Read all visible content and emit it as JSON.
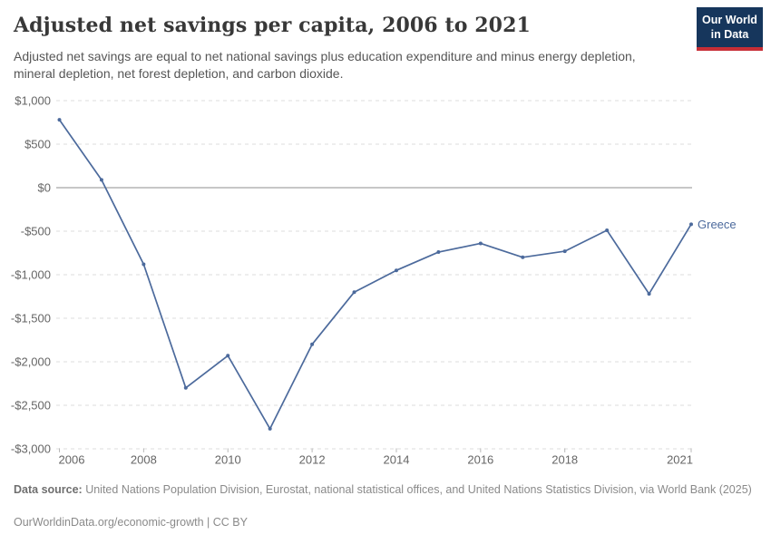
{
  "header": {
    "title": "Adjusted net savings per capita, 2006 to 2021",
    "subtitle": "Adjusted net savings are equal to net national savings plus education expenditure and minus energy depletion, mineral depletion, net forest depletion, and carbon dioxide.",
    "logo": {
      "line1": "Our World",
      "line2": "in Data"
    }
  },
  "chart_data": {
    "type": "line",
    "title": "Adjusted net savings per capita, 2006 to 2021",
    "x": [
      2006,
      2007,
      2008,
      2009,
      2010,
      2011,
      2012,
      2013,
      2014,
      2015,
      2016,
      2017,
      2018,
      2019,
      2020,
      2021
    ],
    "series": [
      {
        "name": "Greece",
        "color": "#4c6a9c",
        "values": [
          780,
          90,
          -880,
          -2300,
          -1930,
          -2770,
          -1800,
          -1200,
          -950,
          -740,
          -640,
          -800,
          -730,
          -490,
          -1220,
          -420
        ]
      }
    ],
    "xlabel": "",
    "ylabel": "",
    "ylim": [
      -3000,
      1000
    ],
    "xlim": [
      2006,
      2021
    ],
    "y_ticks": [
      1000,
      500,
      0,
      -500,
      -1000,
      -1500,
      -2000,
      -2500,
      -3000
    ],
    "y_tick_labels": [
      "$1,000",
      "$500",
      "$0",
      "-$500",
      "-$1,000",
      "-$1,500",
      "-$2,000",
      "-$2,500",
      "-$3,000"
    ],
    "x_tick_years": [
      2006,
      2008,
      2010,
      2012,
      2014,
      2016,
      2018,
      2021
    ],
    "grid": "horizontal-dashed",
    "legend_position": "line-end-label"
  },
  "footer": {
    "source_label": "Data source:",
    "source_text": " United Nations Population Division, Eurostat, national statistical offices, and United Nations Statistics Division, via World Bank (2025)",
    "link_line": "OurWorldinData.org/economic-growth | CC BY"
  },
  "colors": {
    "series_blue": "#4c6a9c",
    "grid_dashed": "#dcdcdc",
    "zero_line": "#8f8f8f",
    "tick_mark": "#b8b8b8",
    "axis_text": "#666666",
    "logo_navy": "#16365c",
    "logo_red": "#c72e36"
  }
}
